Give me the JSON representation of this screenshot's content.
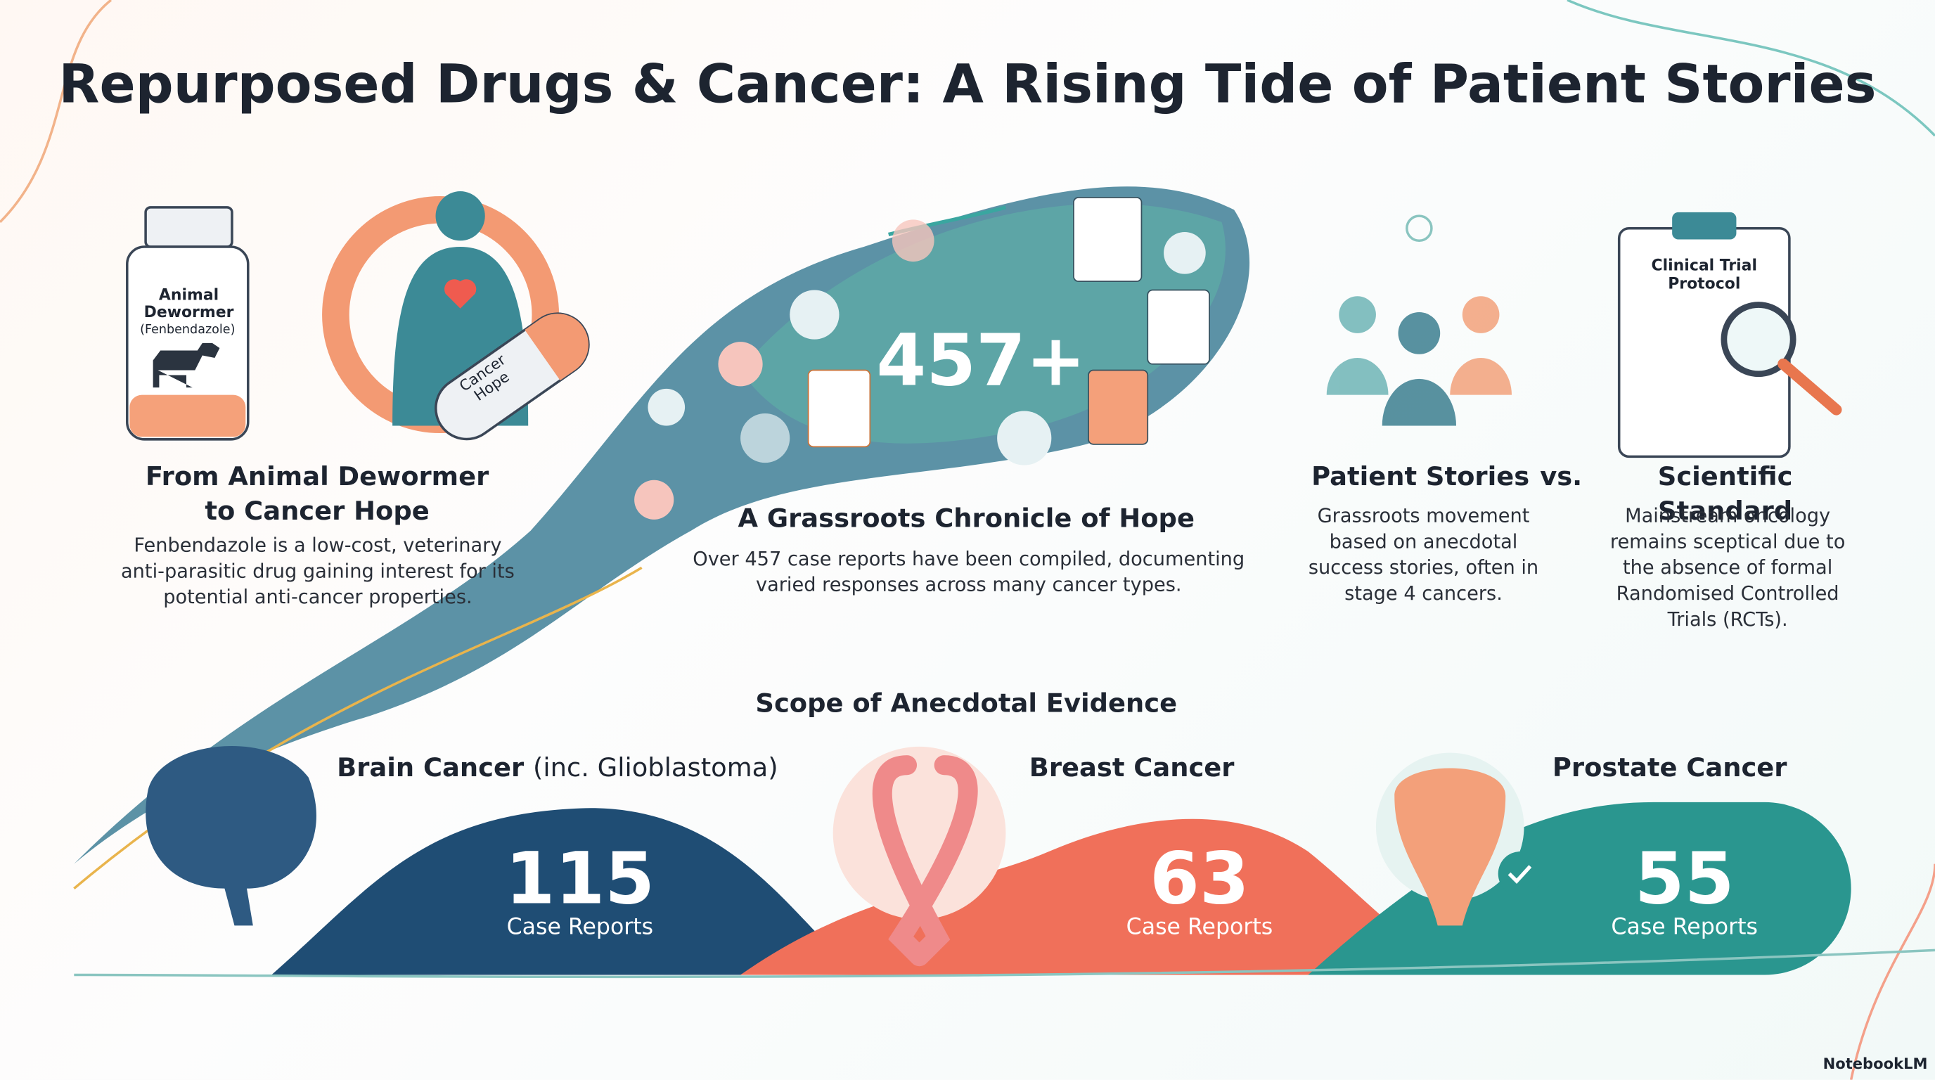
{
  "header": {
    "title": "Repurposed Drugs & Cancer: A Rising Tide of Patient Stories"
  },
  "origin": {
    "bottle_label": "Animal Dewormer",
    "bottle_sublabel": "(Fenbendazole)",
    "capsule": "Cancer Hope",
    "heading": "From Animal Dewormer to Cancer Hope",
    "body": "Fenbendazole is a low-cost, veterinary anti-parasitic drug gaining interest for its potential anti-cancer properties."
  },
  "chronicle": {
    "count": "457+",
    "heading": "A Grassroots Chronicle of Hope",
    "body": "Over 457 case reports have been compiled, documenting varied responses across many cancer types."
  },
  "comparison": {
    "clipboard": "Clinical Trial Protocol",
    "left_heading": "Patient Stories",
    "separator": "vs.",
    "right_heading": "Scientific Standard",
    "left_body": "Grassroots movement based on anecdotal success stories, often in stage 4 cancers.",
    "right_body": "Mainstream oncology remains sceptical due to the absence of formal Randomised Controlled Trials (RCTs)."
  },
  "scope": {
    "heading": "Scope of Anecdotal Evidence",
    "items": [
      {
        "name": "Brain Cancer",
        "qualifier": "(inc. Glioblastoma)",
        "count": 115,
        "unit": "Case Reports"
      },
      {
        "name": "Breast Cancer",
        "count": 63,
        "unit": "Case Reports"
      },
      {
        "name": "Prostate Cancer",
        "count": 55,
        "unit": "Case Reports"
      }
    ]
  },
  "footer": {
    "brand": "NotebookLM"
  }
}
